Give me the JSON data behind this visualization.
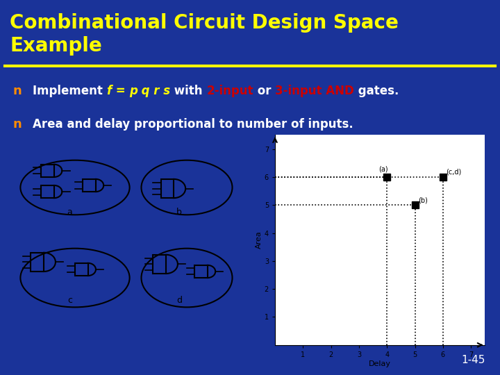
{
  "title_line1": "Combinational Circuit Design Space",
  "title_line2": "Example",
  "title_color": "#FFFF00",
  "title_bg_color": "#1a3399",
  "underline_color": "#FFFF00",
  "bg_color": "#1a3399",
  "bullet_color": "#FF8C00",
  "bullet1_parts": [
    {
      "text": "Implement ",
      "color": "white",
      "style": "normal"
    },
    {
      "text": "f",
      "color": "#FFFF00",
      "style": "italic"
    },
    {
      "text": " = ",
      "color": "#FFFF00",
      "style": "italic"
    },
    {
      "text": "p q r s",
      "color": "#FFFF00",
      "style": "italic"
    },
    {
      "text": " with ",
      "color": "white",
      "style": "normal"
    },
    {
      "text": "2-input",
      "color": "#FF4444",
      "style": "normal"
    },
    {
      "text": " or ",
      "color": "white",
      "style": "normal"
    },
    {
      "text": "3-input AND",
      "color": "#FF4444",
      "style": "normal"
    },
    {
      "text": " gates.",
      "color": "white",
      "style": "normal"
    }
  ],
  "bullet2": "Area and delay proportional to number of inputs.",
  "point_a": [
    4,
    6
  ],
  "point_b": [
    5,
    5
  ],
  "point_cd": [
    6,
    6
  ],
  "label_a": "(a)",
  "label_b": "(b)",
  "label_cd": "(c,d)",
  "plot_bg": "white",
  "plot_xlabel": "Delay",
  "plot_ylabel": "Area",
  "page_num": "1-45"
}
